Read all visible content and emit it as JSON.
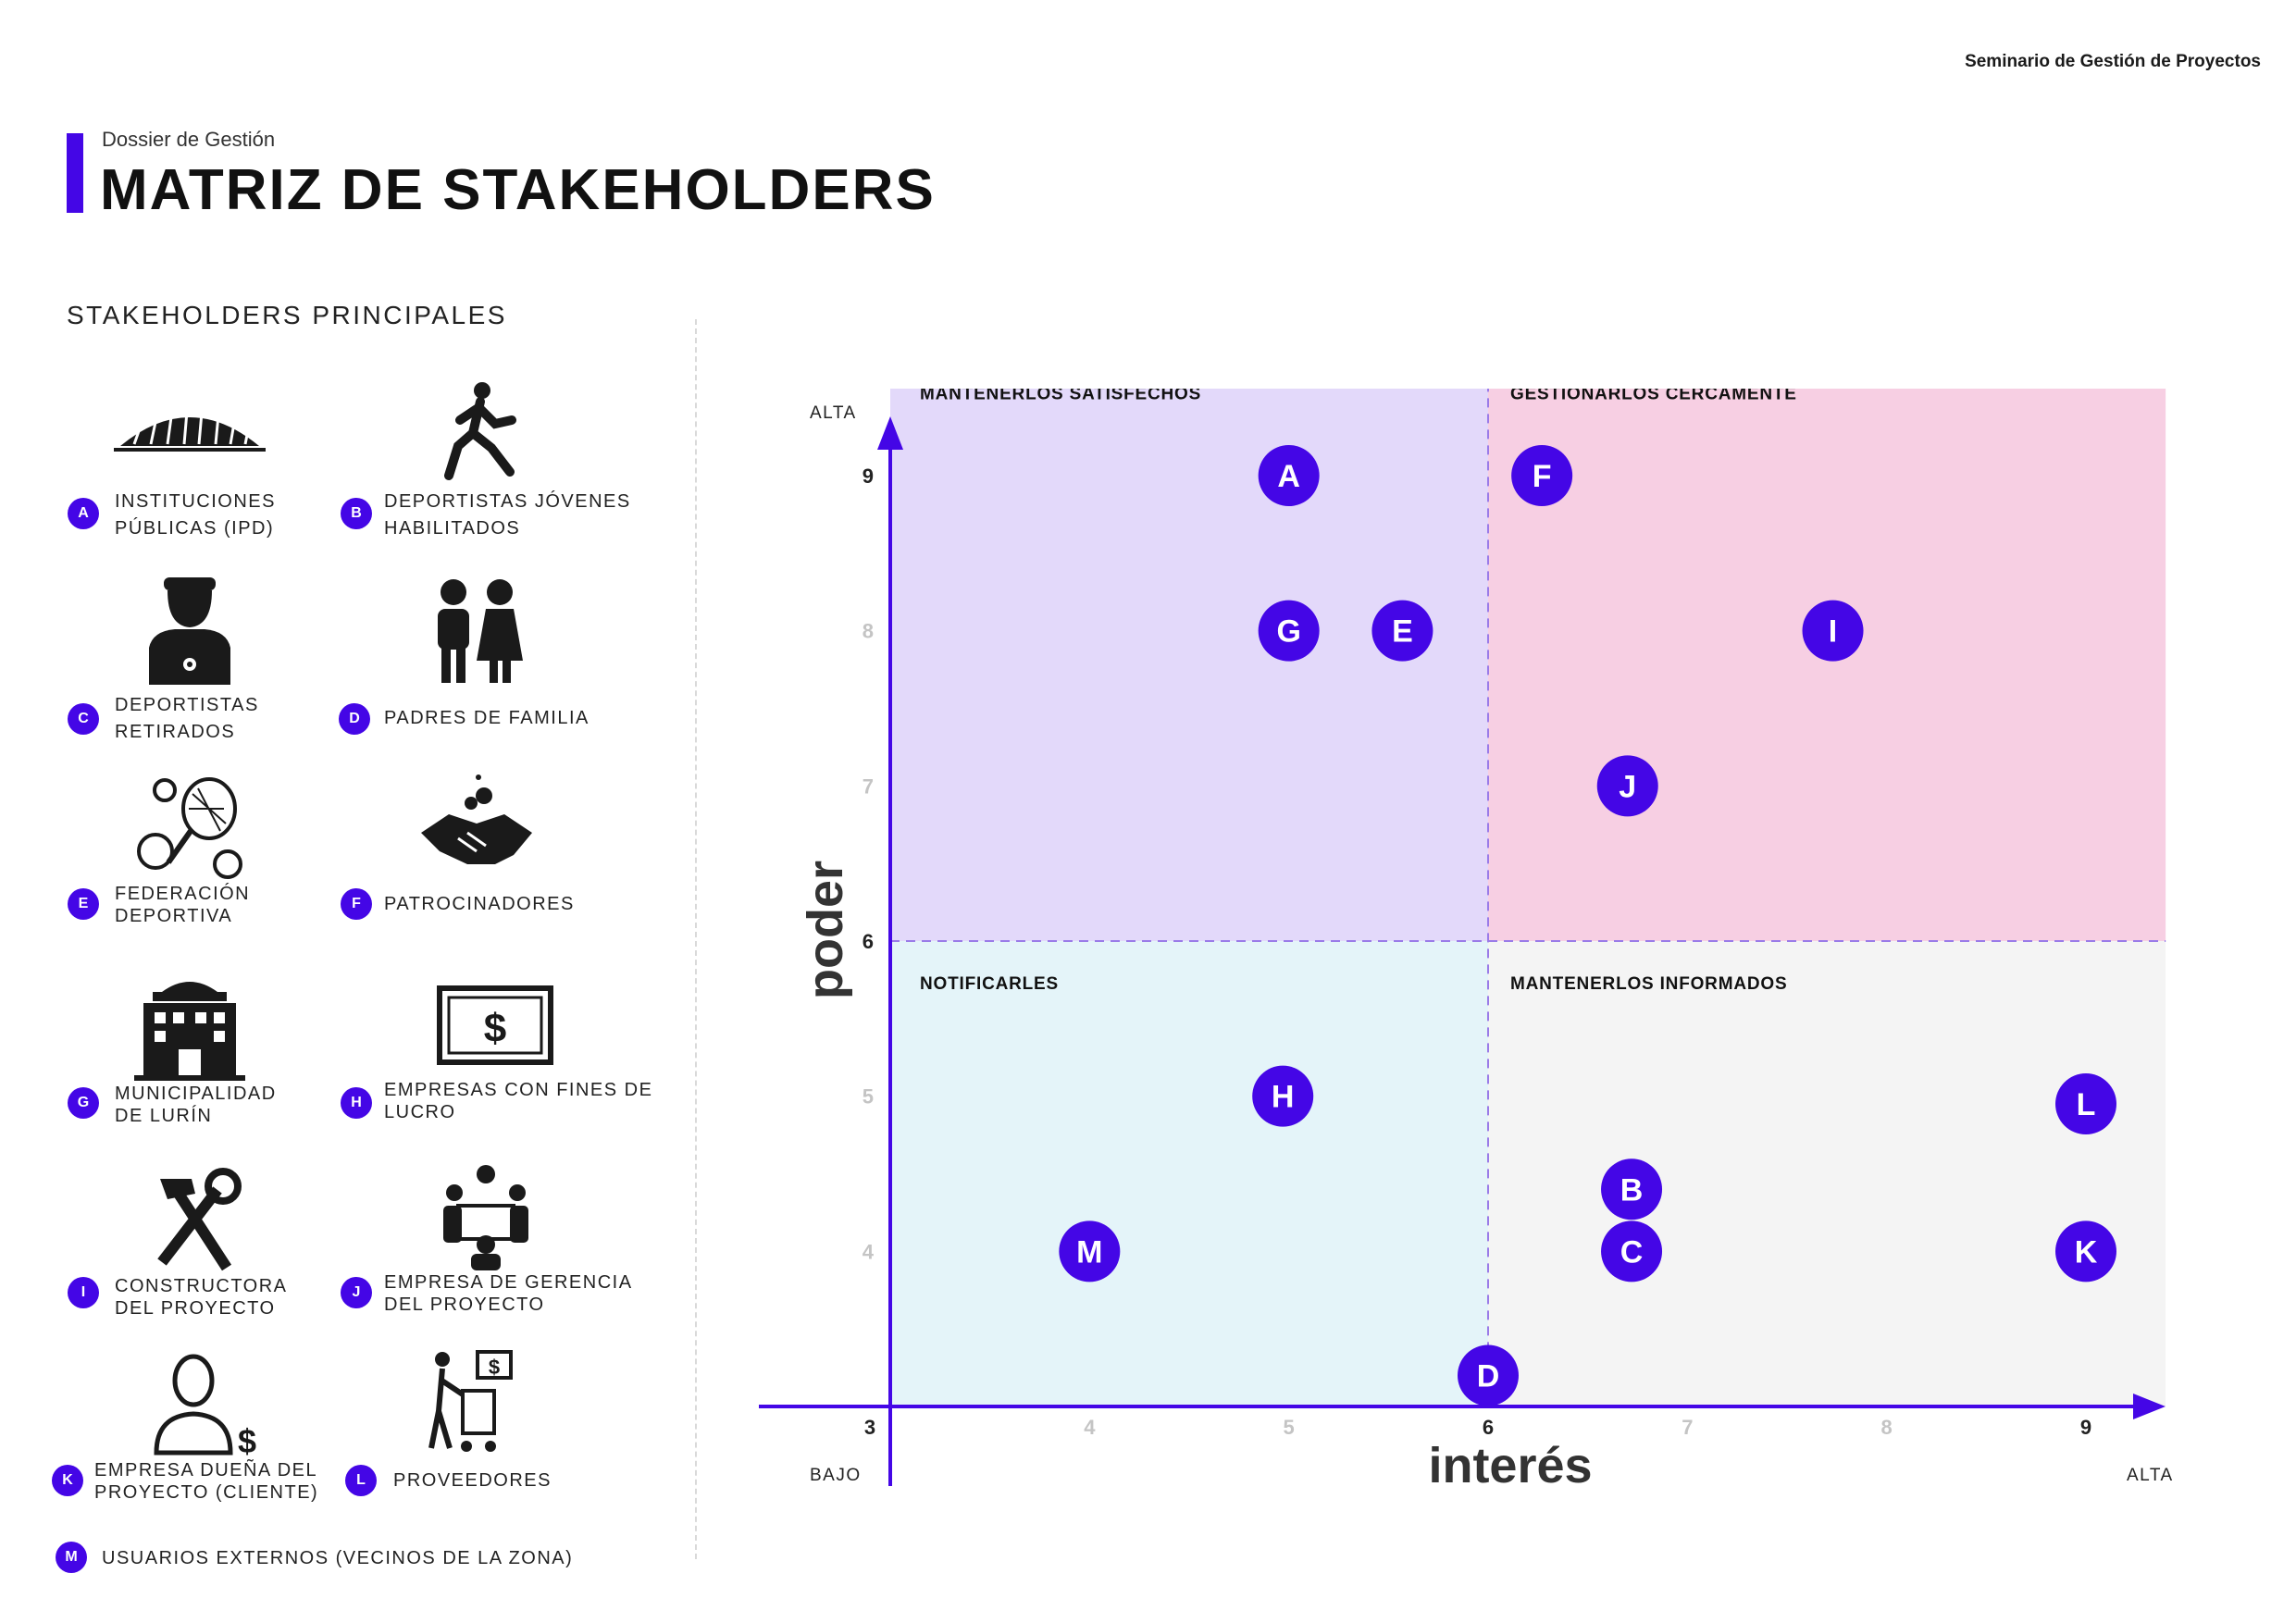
{
  "header": {
    "top_right": "Seminario de Gestión de Proyectos",
    "subtitle": "Dossier de Gestión",
    "title": "MATRIZ DE STAKEHOLDERS"
  },
  "sidebar": {
    "title": "STAKEHOLDERS PRINCIPALES",
    "items": [
      {
        "letter": "A",
        "label": "INSTITUCIONES\nPÚBLICAS (IPD)",
        "icon": "stadium-icon"
      },
      {
        "letter": "B",
        "label": "DEPORTISTAS JÓVENES\nHABILITADOS",
        "icon": "runner-icon"
      },
      {
        "letter": "C",
        "label": "DEPORTISTAS\nRETIRADOS",
        "icon": "athlete-icon"
      },
      {
        "letter": "D",
        "label": "PADRES DE FAMILIA",
        "icon": "parents-icon"
      },
      {
        "letter": "E",
        "label": "FEDERACIÓN\nDEPORTIVA",
        "icon": "sports-balls-icon"
      },
      {
        "letter": "F",
        "label": "PATROCINADORES",
        "icon": "handshake-icon"
      },
      {
        "letter": "G",
        "label": "MUNICIPALIDAD\nDE LURÍN",
        "icon": "city-hall-icon"
      },
      {
        "letter": "H",
        "label": "EMPRESAS CON FINES DE\nLUCRO",
        "icon": "money-icon"
      },
      {
        "letter": "I",
        "label": "CONSTRUCTORA\nDEL PROYECTO",
        "icon": "tools-icon"
      },
      {
        "letter": "J",
        "label": "EMPRESA DE GERENCIA\nDEL PROYECTO",
        "icon": "meeting-icon"
      },
      {
        "letter": "K",
        "label": "EMPRESA DUEÑA DEL\nPROYECTO (CLIENTE)",
        "icon": "owner-icon"
      },
      {
        "letter": "L",
        "label": "PROVEEDORES",
        "icon": "supplier-icon"
      },
      {
        "letter": "M",
        "label": "USUARIOS EXTERNOS (VECINOS DE LA ZONA)",
        "icon": ""
      }
    ]
  },
  "colors": {
    "accent": "#4406e6",
    "quadrant_top_left": "#e3d9fa",
    "quadrant_top_right": "#f7cfe3",
    "quadrant_bottom_left": "#e4f4f9",
    "quadrant_bottom_right": "#f4f4f4"
  },
  "chart_data": {
    "type": "scatter",
    "xlabel": "interés",
    "ylabel": "poder",
    "xlim": [
      3,
      9.4
    ],
    "ylim": [
      3,
      9.6
    ],
    "x_ticks": [
      3,
      4,
      5,
      6,
      7,
      8,
      9
    ],
    "y_ticks": [
      3,
      4,
      5,
      6,
      7,
      8,
      9
    ],
    "x_low_label": "BAJO",
    "x_high_label": "ALTA",
    "y_high_label": "ALTA",
    "divider_x": 6,
    "divider_y": 6,
    "quadrants": [
      {
        "name": "MANTENERLOS SATISFECHOS",
        "position": "top-left"
      },
      {
        "name": "GESTIONARLOS CERCAMENTE",
        "position": "top-right"
      },
      {
        "name": "NOTIFICARLES",
        "position": "bottom-left"
      },
      {
        "name": "MANTENERLOS INFORMADOS",
        "position": "bottom-right"
      }
    ],
    "points": [
      {
        "label": "A",
        "x": 5.0,
        "y": 9.0
      },
      {
        "label": "F",
        "x": 6.27,
        "y": 9.0
      },
      {
        "label": "G",
        "x": 5.0,
        "y": 8.0
      },
      {
        "label": "E",
        "x": 5.57,
        "y": 8.0
      },
      {
        "label": "I",
        "x": 7.73,
        "y": 8.0
      },
      {
        "label": "J",
        "x": 6.7,
        "y": 7.0
      },
      {
        "label": "H",
        "x": 4.97,
        "y": 5.0
      },
      {
        "label": "L",
        "x": 9.0,
        "y": 4.95
      },
      {
        "label": "B",
        "x": 6.72,
        "y": 4.4
      },
      {
        "label": "M",
        "x": 4.0,
        "y": 4.0
      },
      {
        "label": "C",
        "x": 6.72,
        "y": 4.0
      },
      {
        "label": "K",
        "x": 9.0,
        "y": 4.0
      },
      {
        "label": "D",
        "x": 6.0,
        "y": 3.2
      }
    ]
  }
}
